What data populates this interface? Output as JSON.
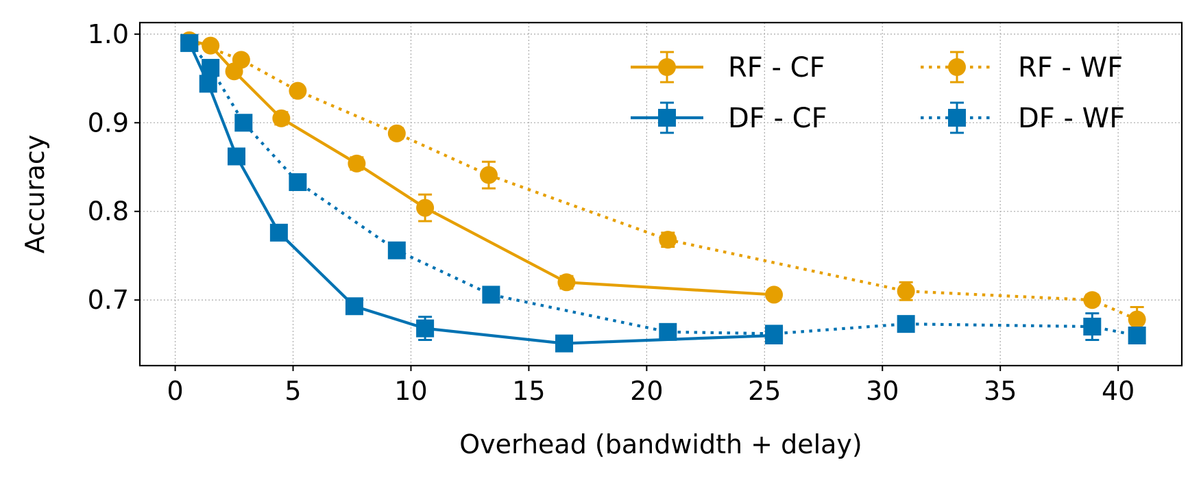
{
  "chart_data": {
    "type": "line",
    "title": "",
    "xlabel": "Overhead (bandwidth + delay)",
    "ylabel": "Accuracy",
    "xlim": [
      -1.5,
      42.7
    ],
    "ylim": [
      0.626,
      1.013
    ],
    "xticks": [
      0,
      5,
      10,
      15,
      20,
      25,
      30,
      35,
      40
    ],
    "xtick_labels": [
      "0",
      "5",
      "10",
      "15",
      "20",
      "25",
      "30",
      "35",
      "40"
    ],
    "yticks": [
      0.7,
      0.8,
      0.9,
      1.0
    ],
    "ytick_labels": [
      "0.7",
      "0.8",
      "0.9",
      "1.0"
    ],
    "grid": true,
    "legend": {
      "placement": "top-right",
      "columns": 2
    },
    "series": [
      {
        "name": "RF - CF",
        "color": "#E69F00",
        "linestyle": "solid",
        "marker": "circle",
        "points": [
          {
            "x": 0.6,
            "y": 0.993,
            "err": 0.003
          },
          {
            "x": 1.5,
            "y": 0.987,
            "err": 0.004
          },
          {
            "x": 2.5,
            "y": 0.958,
            "err": 0.005
          },
          {
            "x": 4.5,
            "y": 0.905,
            "err": 0.007
          },
          {
            "x": 7.7,
            "y": 0.854,
            "err": 0.007
          },
          {
            "x": 10.6,
            "y": 0.804,
            "err": 0.015
          },
          {
            "x": 16.6,
            "y": 0.72,
            "err": 0.007
          },
          {
            "x": 25.4,
            "y": 0.706,
            "err": 0.005
          }
        ]
      },
      {
        "name": "DF - CF",
        "color": "#0072B2",
        "linestyle": "solid",
        "marker": "square",
        "points": [
          {
            "x": 0.6,
            "y": 0.99,
            "err": 0.003
          },
          {
            "x": 1.4,
            "y": 0.944,
            "err": 0.004
          },
          {
            "x": 2.6,
            "y": 0.862,
            "err": 0.005
          },
          {
            "x": 4.4,
            "y": 0.776,
            "err": 0.005
          },
          {
            "x": 7.6,
            "y": 0.693,
            "err": 0.005
          },
          {
            "x": 10.6,
            "y": 0.668,
            "err": 0.013
          },
          {
            "x": 16.5,
            "y": 0.651,
            "err": 0.005
          },
          {
            "x": 25.4,
            "y": 0.66,
            "err": 0.007
          }
        ]
      },
      {
        "name": "RF - WF",
        "color": "#E69F00",
        "linestyle": "dotted",
        "marker": "circle",
        "points": [
          {
            "x": 0.6,
            "y": 0.993,
            "err": 0.003
          },
          {
            "x": 2.8,
            "y": 0.971,
            "err": 0.005
          },
          {
            "x": 5.2,
            "y": 0.936,
            "err": 0.005
          },
          {
            "x": 9.4,
            "y": 0.888,
            "err": 0.006
          },
          {
            "x": 13.3,
            "y": 0.841,
            "err": 0.015
          },
          {
            "x": 20.9,
            "y": 0.768,
            "err": 0.008
          },
          {
            "x": 31.0,
            "y": 0.71,
            "err": 0.01
          },
          {
            "x": 38.9,
            "y": 0.7,
            "err": 0.006
          },
          {
            "x": 40.8,
            "y": 0.678,
            "err": 0.014
          }
        ]
      },
      {
        "name": "DF - WF",
        "color": "#0072B2",
        "linestyle": "dotted",
        "marker": "square",
        "points": [
          {
            "x": 0.6,
            "y": 0.99,
            "err": 0.003
          },
          {
            "x": 1.5,
            "y": 0.962,
            "err": 0.004
          },
          {
            "x": 2.9,
            "y": 0.9,
            "err": 0.005
          },
          {
            "x": 5.2,
            "y": 0.833,
            "err": 0.005
          },
          {
            "x": 9.4,
            "y": 0.756,
            "err": 0.005
          },
          {
            "x": 13.4,
            "y": 0.706,
            "err": 0.005
          },
          {
            "x": 20.9,
            "y": 0.664,
            "err": 0.006
          },
          {
            "x": 25.4,
            "y": 0.662,
            "err": 0.006
          },
          {
            "x": 31.0,
            "y": 0.673,
            "err": 0.006
          },
          {
            "x": 38.9,
            "y": 0.67,
            "err": 0.015
          },
          {
            "x": 40.8,
            "y": 0.66,
            "err": 0.008
          }
        ]
      }
    ]
  }
}
